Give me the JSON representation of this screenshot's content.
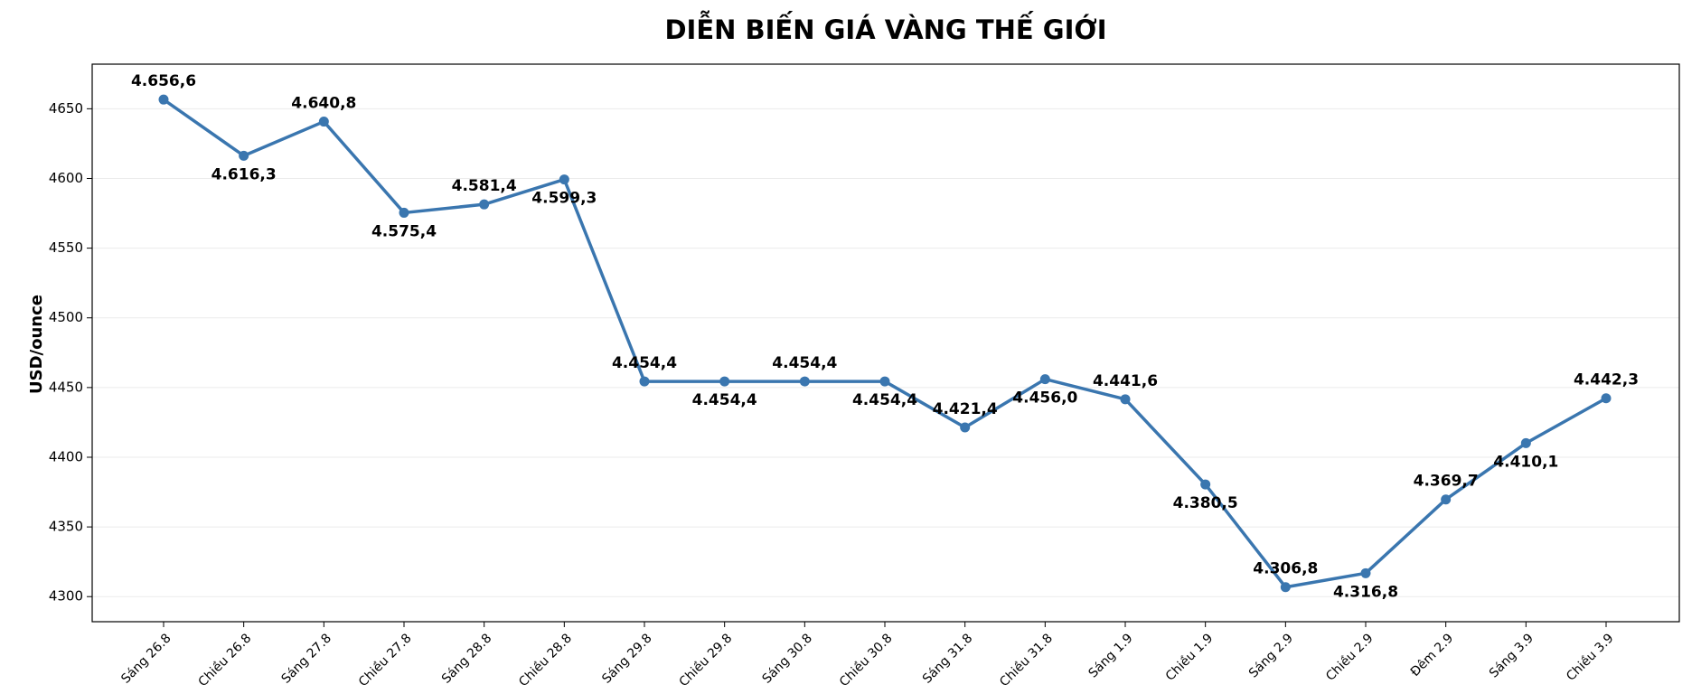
{
  "chart_data": {
    "type": "line",
    "title": "DIỄN BIẾN GIÁ VÀNG THẾ GIỚI",
    "y_label": "USD/ounce",
    "categories": [
      "Sáng 26.8",
      "Chiều 26.8",
      "Sáng 27.8",
      "Chiều 27.8",
      "Sáng 28.8",
      "Chiều 28.8",
      "Sáng 29.8",
      "Chiều 29.8",
      "Sáng 30.8",
      "Chiều 30.8",
      "Sáng 31.8",
      "Chiều 31.8",
      "Sáng 1.9",
      "Chiều 1.9",
      "Sáng 2.9",
      "Chiều 2.9",
      "Đêm 2.9",
      "Sáng 3.9",
      "Chiều 3.9"
    ],
    "values": [
      4656.6,
      4616.3,
      4640.8,
      4575.4,
      4581.4,
      4599.3,
      4454.4,
      4454.4,
      4454.4,
      4454.4,
      4421.4,
      4456.0,
      4441.6,
      4380.5,
      4306.8,
      4316.8,
      4369.7,
      4410.1,
      4442.3
    ],
    "value_labels": [
      "4.656,6",
      "4.616,3",
      "4.640,8",
      "4.575,4",
      "4.581,4",
      "4.599,3",
      "4.454,4",
      "4.454,4",
      "4.454,4",
      "4.454,4",
      "4.421,4",
      "4.456,0",
      "4.441,6",
      "4.380,5",
      "4.306,8",
      "4.316,8",
      "4.369,7",
      "4.410,1",
      "4.442,3"
    ],
    "color": "#3a76af",
    "ylim": [
      4282,
      4682
    ],
    "yticks": [
      4300,
      4350,
      4400,
      4450,
      4500,
      4550,
      4600,
      4650
    ],
    "grid": true
  }
}
